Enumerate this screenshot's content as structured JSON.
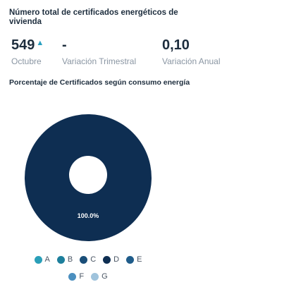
{
  "header": {
    "title": "Número total de certificados energéticos de vivienda"
  },
  "metrics": [
    {
      "value": "549",
      "trend": "▲",
      "label": "Octubre"
    },
    {
      "value": "-",
      "trend": "",
      "label": "Variación Trimestral"
    },
    {
      "value": "0,10",
      "trend": "",
      "label": "Variación Anual"
    }
  ],
  "section": {
    "title": "Porcentaje de Certificados según consumo energía"
  },
  "chart_data": {
    "type": "pie",
    "title": "",
    "categories": [
      "A",
      "B",
      "C",
      "D",
      "E",
      "F",
      "G"
    ],
    "values": [
      0,
      0,
      0,
      100,
      0,
      0,
      0
    ],
    "slice_label": "100.0%",
    "colors": [
      "#2a9fb8",
      "#1d7f9c",
      "#1a4e78",
      "#0e2e52",
      "#1f5c8a",
      "#4b8fbf",
      "#9fc3dc"
    ],
    "legend_placement": "bottom"
  },
  "legend": {
    "row1": [
      {
        "label": "A",
        "color": "#2a9fb8"
      },
      {
        "label": "B",
        "color": "#1d7f9c"
      },
      {
        "label": "C",
        "color": "#1a4e78"
      },
      {
        "label": "D",
        "color": "#0e2e52"
      },
      {
        "label": "E",
        "color": "#1f5c8a"
      }
    ],
    "row2": [
      {
        "label": "F",
        "color": "#4b8fbf"
      },
      {
        "label": "G",
        "color": "#9fc3dc"
      }
    ]
  }
}
